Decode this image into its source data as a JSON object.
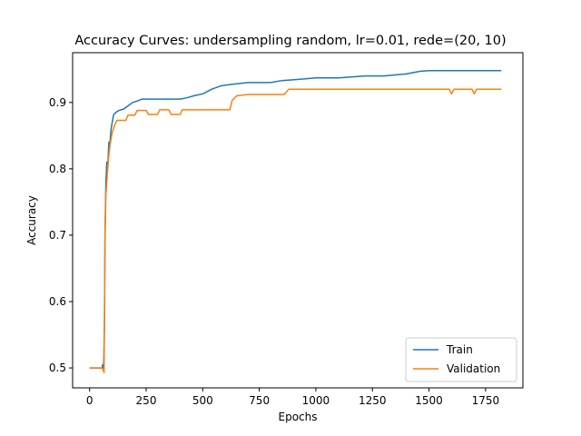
{
  "chart_data": {
    "type": "line",
    "title": "Accuracy Curves: undersampling random, lr=0.01, rede=(20, 10)",
    "xlabel": "Epochs",
    "ylabel": "Accuracy",
    "xlim": [
      -75,
      1915
    ],
    "ylim": [
      0.47,
      0.975
    ],
    "xticks": [
      0,
      250,
      500,
      750,
      1000,
      1250,
      1500,
      1750
    ],
    "yticks": [
      0.5,
      0.6,
      0.7,
      0.8,
      0.9
    ],
    "yticks_labels": [
      "0.5",
      "0.6",
      "0.7",
      "0.8",
      "0.9"
    ],
    "legend_position": "bottom-right",
    "series": [
      {
        "name": "Train",
        "color": "#1f77b4",
        "points": [
          [
            0,
            0.5
          ],
          [
            55,
            0.5
          ],
          [
            58,
            0.505
          ],
          [
            62,
            0.5
          ],
          [
            66,
            0.57
          ],
          [
            68,
            0.7
          ],
          [
            72,
            0.78
          ],
          [
            76,
            0.81
          ],
          [
            80,
            0.8
          ],
          [
            85,
            0.84
          ],
          [
            90,
            0.84
          ],
          [
            95,
            0.86
          ],
          [
            100,
            0.87
          ],
          [
            105,
            0.88
          ],
          [
            110,
            0.883
          ],
          [
            120,
            0.886
          ],
          [
            130,
            0.888
          ],
          [
            150,
            0.89
          ],
          [
            170,
            0.895
          ],
          [
            190,
            0.9
          ],
          [
            210,
            0.902
          ],
          [
            230,
            0.905
          ],
          [
            260,
            0.905
          ],
          [
            300,
            0.905
          ],
          [
            330,
            0.905
          ],
          [
            400,
            0.905
          ],
          [
            430,
            0.907
          ],
          [
            460,
            0.91
          ],
          [
            500,
            0.913
          ],
          [
            540,
            0.92
          ],
          [
            580,
            0.925
          ],
          [
            620,
            0.927
          ],
          [
            700,
            0.93
          ],
          [
            800,
            0.93
          ],
          [
            850,
            0.933
          ],
          [
            930,
            0.935
          ],
          [
            1000,
            0.937
          ],
          [
            1100,
            0.937
          ],
          [
            1220,
            0.94
          ],
          [
            1300,
            0.94
          ],
          [
            1400,
            0.943
          ],
          [
            1460,
            0.947
          ],
          [
            1500,
            0.948
          ],
          [
            1600,
            0.948
          ],
          [
            1700,
            0.948
          ],
          [
            1820,
            0.948
          ]
        ]
      },
      {
        "name": "Validation",
        "color": "#ff7f0e",
        "points": [
          [
            0,
            0.5
          ],
          [
            55,
            0.5
          ],
          [
            60,
            0.497
          ],
          [
            64,
            0.493
          ],
          [
            66,
            0.6
          ],
          [
            68,
            0.69
          ],
          [
            72,
            0.76
          ],
          [
            76,
            0.78
          ],
          [
            80,
            0.8
          ],
          [
            85,
            0.82
          ],
          [
            90,
            0.835
          ],
          [
            100,
            0.855
          ],
          [
            110,
            0.865
          ],
          [
            120,
            0.873
          ],
          [
            160,
            0.873
          ],
          [
            170,
            0.881
          ],
          [
            200,
            0.881
          ],
          [
            210,
            0.888
          ],
          [
            250,
            0.888
          ],
          [
            260,
            0.882
          ],
          [
            300,
            0.882
          ],
          [
            310,
            0.889
          ],
          [
            350,
            0.889
          ],
          [
            360,
            0.882
          ],
          [
            400,
            0.882
          ],
          [
            410,
            0.889
          ],
          [
            620,
            0.889
          ],
          [
            630,
            0.903
          ],
          [
            650,
            0.91
          ],
          [
            700,
            0.912
          ],
          [
            740,
            0.912
          ],
          [
            790,
            0.912
          ],
          [
            860,
            0.912
          ],
          [
            880,
            0.92
          ],
          [
            1000,
            0.92
          ],
          [
            1100,
            0.92
          ],
          [
            1590,
            0.92
          ],
          [
            1600,
            0.913
          ],
          [
            1610,
            0.92
          ],
          [
            1690,
            0.92
          ],
          [
            1700,
            0.913
          ],
          [
            1710,
            0.92
          ],
          [
            1820,
            0.92
          ]
        ]
      }
    ]
  }
}
